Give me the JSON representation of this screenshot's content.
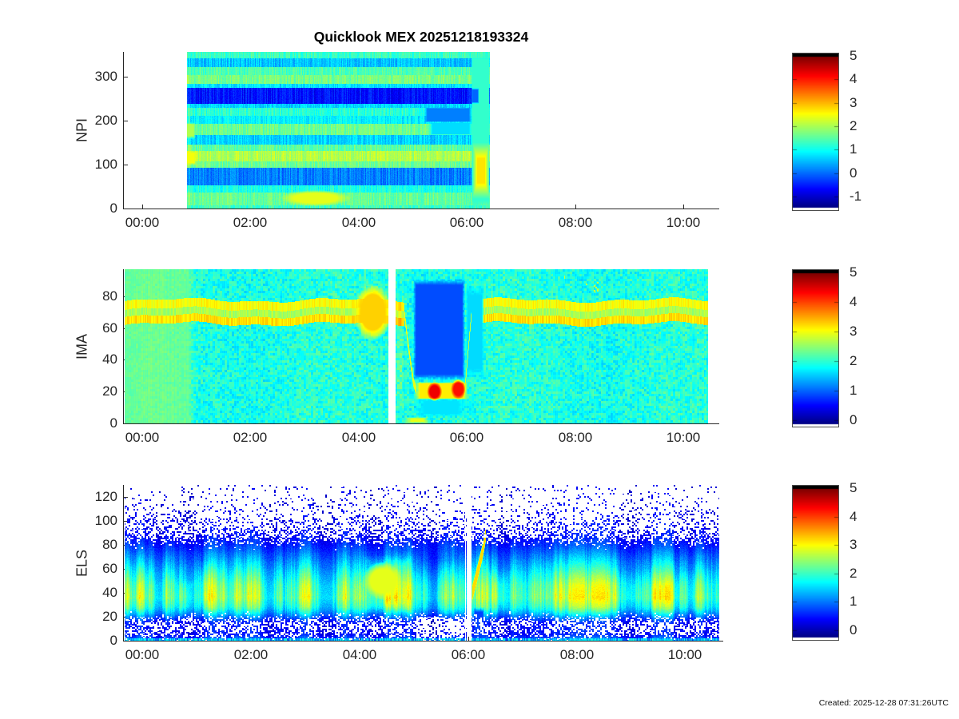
{
  "header": {
    "title": "Quicklook MEX 20251218193324"
  },
  "footer": {
    "created": "Created: 2025-12-28 07:31:26UTC"
  },
  "colors": {
    "axis": "#262626",
    "title": "#000000",
    "colormap": "jet",
    "missing_data": "#ffffff",
    "saturated_cap": "#000000"
  },
  "chart_data": [
    {
      "id": "npi",
      "type": "heatmap",
      "ylabel": "NPI",
      "colormap": "jet",
      "clim": [
        -1,
        5
      ],
      "colorbar_ticks": [
        5,
        4,
        3,
        2,
        1,
        0,
        -1
      ],
      "x_ticks": {
        "hours": [
          0,
          2,
          4,
          6,
          8,
          10
        ],
        "labels": [
          "00:00",
          "02:00",
          "04:00",
          "06:00",
          "08:00",
          "10:00"
        ]
      },
      "y_ticks": [
        0,
        100,
        200,
        300
      ],
      "y_range": [
        0,
        356
      ],
      "x_range_hours": [
        -0.34,
        10.66
      ],
      "data_hours": [
        0.82,
        6.42
      ],
      "gaps_hours": [],
      "bands": [
        [
          0,
          7,
          1.6
        ],
        [
          7,
          36,
          1.85
        ],
        [
          36,
          52,
          1.4
        ],
        [
          52,
          93,
          0.5
        ],
        [
          93,
          108,
          1.9
        ],
        [
          108,
          130,
          2.3
        ],
        [
          130,
          146,
          1.8
        ],
        [
          146,
          168,
          1.0
        ],
        [
          168,
          192,
          1.9
        ],
        [
          192,
          210,
          1.2
        ],
        [
          210,
          228,
          1.5
        ],
        [
          228,
          238,
          1.0
        ],
        [
          238,
          274,
          -0.15
        ],
        [
          274,
          284,
          1.1
        ],
        [
          284,
          304,
          1.95
        ],
        [
          304,
          321,
          1.7
        ],
        [
          321,
          342,
          0.9
        ],
        [
          342,
          356,
          1.6
        ]
      ],
      "features": [
        {
          "type": "rect",
          "t": [
            0.82,
            0.9
          ],
          "u": [
            0,
            356
          ],
          "dv": 0.35,
          "soft": 0.3
        },
        {
          "type": "blob",
          "t": [
            2.55,
            3.85
          ],
          "u": [
            5,
            42
          ],
          "v": 2.6
        },
        {
          "type": "rect",
          "t": [
            0.8,
            1.0
          ],
          "u": [
            98,
            132
          ],
          "v": 2.7,
          "soft": 0.3
        },
        {
          "type": "rect",
          "t": [
            0.8,
            0.98
          ],
          "u": [
            158,
            196
          ],
          "v": 2.3,
          "soft": 0.3
        },
        {
          "type": "rect",
          "t": [
            5.2,
            6.1
          ],
          "u": [
            196,
            230
          ],
          "v": 0.5,
          "soft": 0.12
        },
        {
          "type": "rect",
          "t": [
            5.3,
            6.1
          ],
          "u": [
            167,
            196
          ],
          "v": 1.05,
          "soft": 0.12
        },
        {
          "type": "rect",
          "t": [
            6.08,
            6.42
          ],
          "u": [
            0,
            356
          ],
          "v": 1.55,
          "soft": 0.08
        },
        {
          "type": "rect",
          "t": [
            6.08,
            6.22
          ],
          "u": [
            238,
            274
          ],
          "v": 0.35,
          "soft": 0.2
        },
        {
          "type": "vstripe",
          "t": [
            6.1,
            6.42
          ],
          "u": [
            22,
            150
          ],
          "v": 2.9,
          "soft": 0.45
        }
      ],
      "texture": {
        "stripe": 0.5,
        "pixel": 0.22
      }
    },
    {
      "id": "ima",
      "type": "heatmap",
      "ylabel": "IMA",
      "colormap": "jet",
      "clim": [
        0,
        5
      ],
      "colorbar_ticks": [
        5,
        4,
        3,
        2,
        1,
        0
      ],
      "x_ticks": {
        "hours": [
          0,
          2,
          4,
          6,
          8,
          10
        ],
        "labels": [
          "00:00",
          "02:00",
          "04:00",
          "06:00",
          "08:00",
          "10:00"
        ]
      },
      "y_ticks": [
        0,
        20,
        40,
        60,
        80
      ],
      "y_range": [
        0,
        97
      ],
      "x_range_hours": [
        -0.34,
        10.66
      ],
      "data_hours": [
        -0.33,
        10.45
      ],
      "gaps_hours": [
        [
          4.55,
          4.68
        ]
      ],
      "background": {
        "left_v": 2.35,
        "right_v": 2.02,
        "t_split": 0.85,
        "left_noise": 0.1,
        "right_noise": 0.3
      },
      "bands": [
        [
          62.5,
          67.5,
          3.25
        ],
        [
          67.5,
          72,
          2.7
        ],
        [
          72,
          77.5,
          3.1
        ]
      ],
      "bands_gap_hours": [
        4.84,
        6.05
      ],
      "features": [
        {
          "type": "blob",
          "t": [
            3.9,
            4.62
          ],
          "u": [
            52,
            88
          ],
          "v": 3.35
        },
        {
          "type": "rect",
          "t": [
            4.68,
            4.84
          ],
          "u": [
            0,
            97
          ],
          "dv": 0.3,
          "soft": 0.3
        },
        {
          "type": "rect",
          "t": [
            5.0,
            5.97
          ],
          "u": [
            27,
            91
          ],
          "v": 1.0,
          "soft": 0.1
        },
        {
          "type": "rect",
          "t": [
            5.97,
            6.32
          ],
          "u": [
            27,
            88
          ],
          "v": 1.7,
          "soft": 0.2
        },
        {
          "type": "rect",
          "t": [
            5.03,
            6.02
          ],
          "u": [
            4,
            16
          ],
          "v": 1.75,
          "soft": 0.3
        },
        {
          "type": "path",
          "pts": [
            [
              4.84,
              70
            ],
            [
              4.93,
              45
            ],
            [
              5.01,
              26
            ],
            [
              5.06,
              21
            ]
          ],
          "thick": 7,
          "v": 3.0
        },
        {
          "type": "rect",
          "t": [
            5.04,
            6.02
          ],
          "u": [
            15,
            26
          ],
          "v": 3.2,
          "soft": 0.15
        },
        {
          "type": "path",
          "pts": [
            [
              5.96,
              21
            ],
            [
              6.02,
              45
            ],
            [
              6.08,
              68
            ]
          ],
          "thick": 7,
          "v": 2.85
        },
        {
          "type": "blob",
          "t": [
            5.26,
            5.54
          ],
          "u": [
            14,
            26
          ],
          "v": 4.45
        },
        {
          "type": "blob",
          "t": [
            5.7,
            5.98
          ],
          "u": [
            15,
            28
          ],
          "v": 4.3
        },
        {
          "type": "rect",
          "t": [
            4.86,
            5.3
          ],
          "u": [
            0,
            4
          ],
          "v": 3.0,
          "soft": 0.4
        },
        {
          "type": "specks",
          "t": [
            7.8,
            8.45
          ],
          "u": [
            83,
            95
          ],
          "v": 2.9,
          "p": 0.05
        }
      ],
      "texture": {
        "cell": 3,
        "pixel": 0.0
      }
    },
    {
      "id": "els",
      "type": "heatmap",
      "ylabel": "ELS",
      "colormap": "jet",
      "clim": [
        0,
        5
      ],
      "colorbar_ticks": [
        5,
        4,
        3,
        2,
        1,
        0
      ],
      "x_ticks": {
        "hours": [
          0,
          2,
          4,
          6,
          8,
          10
        ],
        "labels": [
          "00:00",
          "02:00",
          "04:00",
          "06:00",
          "08:00",
          "10:00"
        ]
      },
      "y_ticks": [
        0,
        20,
        40,
        60,
        80,
        100,
        120
      ],
      "y_range": [
        0,
        130
      ],
      "x_range_hours": [
        -0.34,
        10.7
      ],
      "data_hours": [
        -0.33,
        10.62
      ],
      "gaps_hours": [
        [
          5.94,
          6.06
        ]
      ],
      "gap_columns": [
        [
          5.972,
          0.007
        ],
        [
          6.018,
          0.005
        ]
      ],
      "profile": [
        [
          0,
          1.35
        ],
        [
          2,
          1.0
        ],
        [
          5,
          0.7
        ],
        [
          15,
          0.7
        ],
        [
          18,
          1.0
        ],
        [
          23,
          1.6
        ],
        [
          28,
          2.1
        ],
        [
          36,
          2.45
        ],
        [
          46,
          2.3
        ],
        [
          55,
          1.95
        ],
        [
          65,
          1.5
        ],
        [
          75,
          1.05
        ],
        [
          80,
          0.85
        ],
        [
          86,
          0.68
        ],
        [
          100,
          0.58
        ],
        [
          130,
          0.5
        ]
      ],
      "density": [
        [
          0,
          1
        ],
        [
          3,
          0.8
        ],
        [
          7,
          0.5
        ],
        [
          13,
          0.42
        ],
        [
          17,
          0.6
        ],
        [
          21,
          0.9
        ],
        [
          25,
          1
        ],
        [
          75,
          1
        ],
        [
          79,
          0.95
        ],
        [
          83,
          0.72
        ],
        [
          88,
          0.45
        ],
        [
          95,
          0.28
        ],
        [
          105,
          0.16
        ],
        [
          115,
          0.09
        ],
        [
          130,
          0.05
        ]
      ],
      "features": [
        {
          "type": "rect",
          "t": [
            4.05,
            5.0
          ],
          "u": [
            22,
            72
          ],
          "dv": 0.45,
          "soft": 0.18
        },
        {
          "type": "blob",
          "t": [
            4.06,
            4.8
          ],
          "u": [
            34,
            66
          ],
          "v": 3.0
        },
        {
          "type": "rect",
          "t": [
            5.02,
            5.9
          ],
          "u": [
            0,
            80
          ],
          "dv": -0.25,
          "soft": 0.15
        },
        {
          "type": "density_scale",
          "t": [
            5.05,
            5.93
          ],
          "u": [
            0,
            20
          ],
          "f": 0.45
        },
        {
          "type": "path",
          "pts": [
            [
              6.08,
              40
            ],
            [
              6.18,
              58
            ],
            [
              6.27,
              75
            ],
            [
              6.33,
              90
            ]
          ],
          "thick": 15,
          "v": 3.3
        },
        {
          "type": "rect",
          "t": [
            6.1,
            6.3
          ],
          "u": [
            0,
            28
          ],
          "v": 0.95,
          "soft": 0.25
        },
        {
          "type": "rect",
          "t": [
            6.34,
            6.8
          ],
          "u": [
            20,
            60
          ],
          "dv": 0.3,
          "soft": 0.35
        },
        {
          "type": "rect",
          "t": [
            7.9,
            10.62
          ],
          "u": [
            22,
            58
          ],
          "dv": 0.15,
          "soft": 0.4
        },
        {
          "type": "rect",
          "t": [
            0.6,
            0.95
          ],
          "u": [
            18,
            52
          ],
          "dv": 0.28,
          "soft": 0.35
        },
        {
          "type": "rect",
          "t": [
            0.98,
            1.32
          ],
          "u": [
            20,
            66
          ],
          "dv": 0.22,
          "soft": 0.35
        }
      ],
      "texture": {
        "col": 0.14,
        "pixel": 0.12
      }
    }
  ]
}
